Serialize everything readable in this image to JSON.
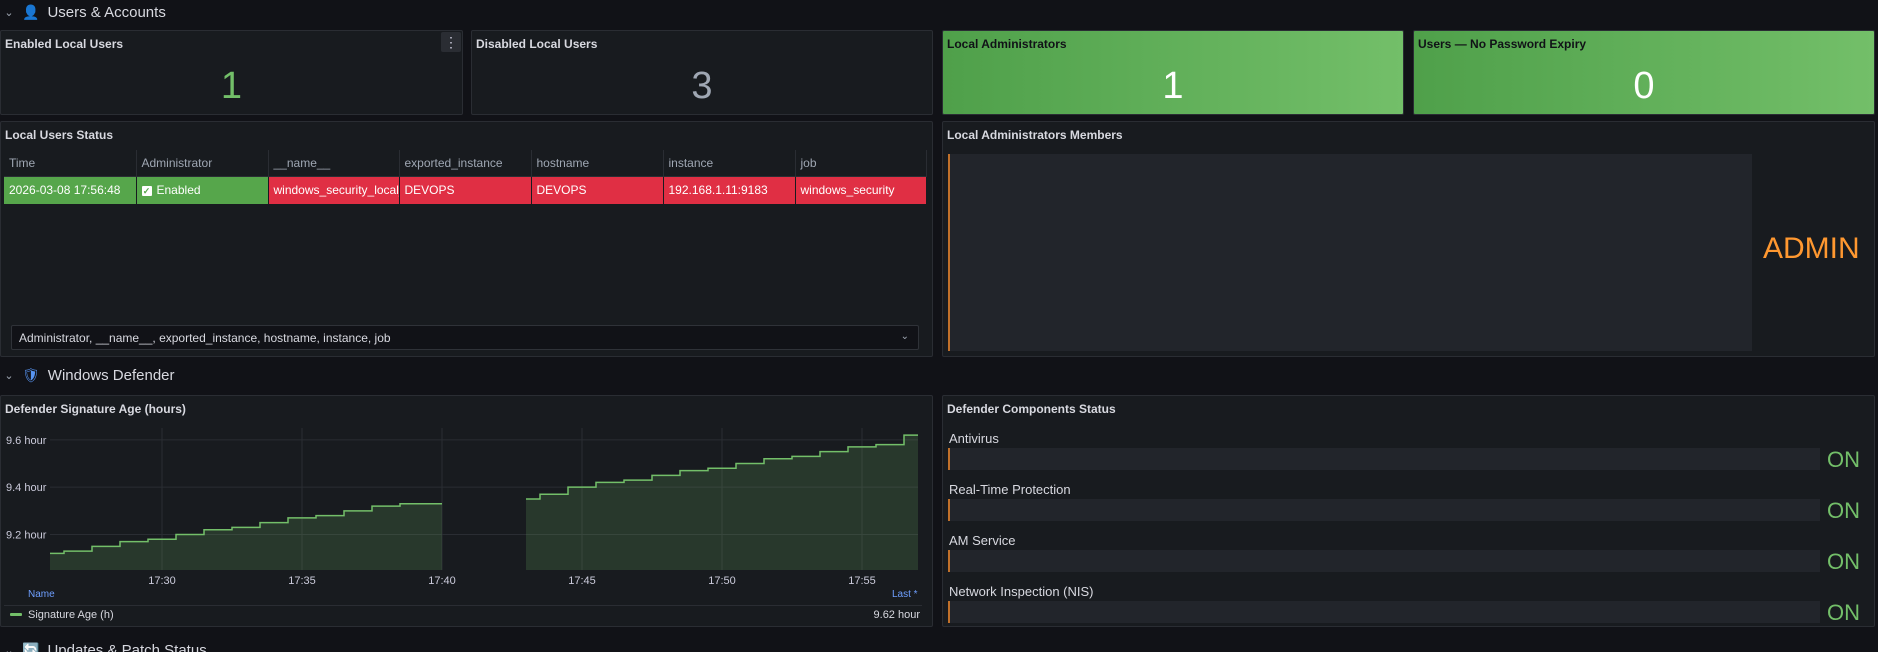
{
  "sections": {
    "users": {
      "title": "Users & Accounts",
      "icon": "user-icon",
      "collapsed": false
    },
    "defender": {
      "title": "Windows Defender",
      "icon": "shield-icon",
      "collapsed": false
    },
    "updates": {
      "title": "Updates & Patch Status",
      "icon": "refresh-icon",
      "collapsed": false
    }
  },
  "stats": {
    "enabled_local_users": {
      "title": "Enabled Local Users",
      "value": "1"
    },
    "disabled_local_users": {
      "title": "Disabled Local Users",
      "value": "3"
    },
    "local_administrators": {
      "title": "Local Administrators",
      "value": "1"
    },
    "no_password_expiry": {
      "title": "Users — No Password Expiry",
      "value": "0"
    }
  },
  "local_users_status": {
    "title": "Local Users Status",
    "columns": [
      "Time",
      "Administrator",
      "__name__",
      "exported_instance",
      "hostname",
      "instance",
      "job"
    ],
    "row": {
      "time": "2026-03-08 17:56:48",
      "administrator": "Enabled",
      "name": "windows_security_local_users_status",
      "exported_instance": "DEVOPS",
      "hostname": "DEVOPS",
      "instance": "192.168.1.11:9183",
      "job": "windows_security"
    },
    "field_selector": "Administrator, __name__, exported_instance, hostname, instance, job"
  },
  "local_admin_members": {
    "title": "Local Administrators Members",
    "value": "ADMIN"
  },
  "signature_age": {
    "title": "Defender Signature Age (hours)",
    "legend_name_header": "Name",
    "legend_last_header": "Last *",
    "legend_series": "Signature Age (h)",
    "legend_last_value": "9.62 hour"
  },
  "defender_components": {
    "title": "Defender Components Status",
    "items": [
      {
        "label": "Antivirus",
        "value": "ON"
      },
      {
        "label": "Real-Time Protection",
        "value": "ON"
      },
      {
        "label": "AM Service",
        "value": "ON"
      },
      {
        "label": "Network Inspection (NIS)",
        "value": "ON"
      }
    ]
  },
  "colors": {
    "green": "#73bf69",
    "red": "#e02f44",
    "orange": "#ff9830",
    "panel_bg": "#181b1f"
  },
  "chart_data": {
    "type": "line",
    "title": "Defender Signature Age (hours)",
    "x_ticks": [
      "17:30",
      "17:35",
      "17:40",
      "17:45",
      "17:50",
      "17:55"
    ],
    "y_ticks": [
      "9.2 hour",
      "9.4 hour",
      "9.6 hour"
    ],
    "ylim": [
      9.05,
      9.65
    ],
    "xlim": [
      "17:26",
      "17:57"
    ],
    "series": [
      {
        "name": "Signature Age (h)",
        "segments": [
          {
            "x": [
              "17:26",
              "17:27",
              "17:28",
              "17:29",
              "17:30",
              "17:31",
              "17:32",
              "17:33",
              "17:34",
              "17:35",
              "17:36",
              "17:37",
              "17:38",
              "17:39",
              "17:40"
            ],
            "y": [
              9.12,
              9.13,
              9.15,
              9.17,
              9.18,
              9.2,
              9.22,
              9.23,
              9.25,
              9.27,
              9.28,
              9.3,
              9.32,
              9.33,
              9.33
            ]
          },
          {
            "x": [
              "17:43",
              "17:44",
              "17:45",
              "17:46",
              "17:47",
              "17:48",
              "17:49",
              "17:50",
              "17:51",
              "17:52",
              "17:53",
              "17:54",
              "17:55",
              "17:56",
              "17:57"
            ],
            "y": [
              9.35,
              9.37,
              9.4,
              9.42,
              9.43,
              9.45,
              9.47,
              9.48,
              9.5,
              9.52,
              9.53,
              9.55,
              9.57,
              9.58,
              9.62
            ]
          }
        ]
      }
    ]
  }
}
